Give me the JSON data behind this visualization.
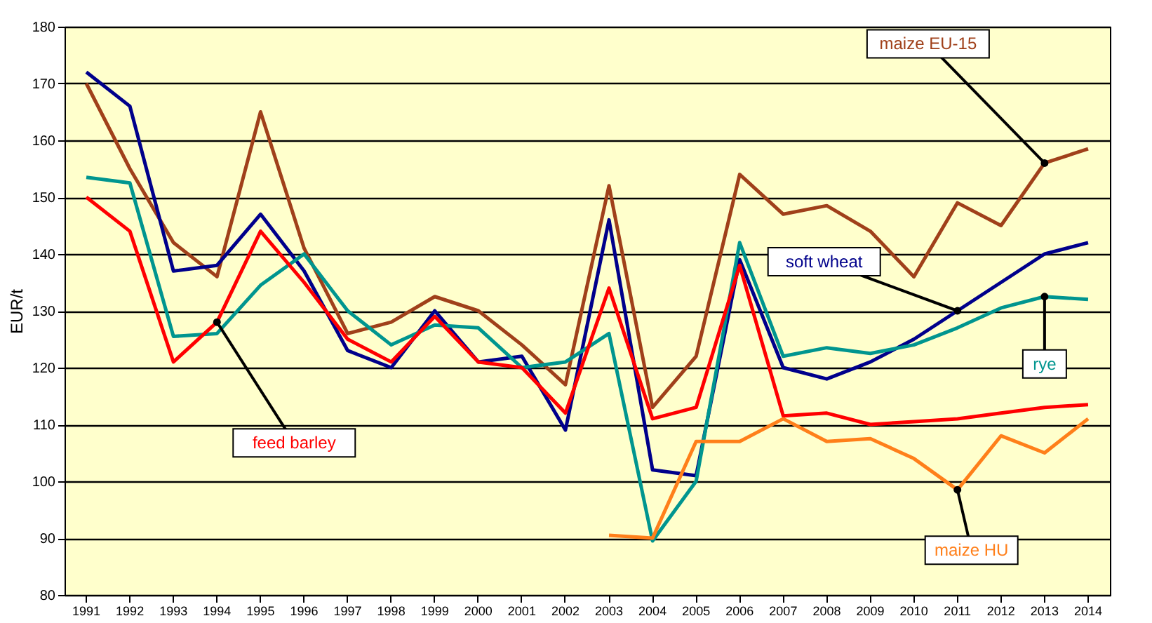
{
  "chart_data": {
    "type": "line",
    "ylabel": "EUR/t",
    "categories": [
      "1991",
      "1992",
      "1993",
      "1994",
      "1995",
      "1996",
      "1997",
      "1998",
      "1999",
      "2000",
      "2001",
      "2002",
      "2003",
      "2004",
      "2005",
      "2006",
      "2007",
      "2008",
      "2009",
      "2010",
      "2011",
      "2012",
      "2013",
      "2014"
    ],
    "series": [
      {
        "name": "maize EU-15",
        "color": "#a0401a",
        "values": [
          170,
          155,
          142,
          136,
          165,
          141,
          126,
          128,
          132.5,
          130,
          124,
          117,
          152,
          113,
          122,
          154,
          147,
          148.5,
          144,
          136,
          149,
          145,
          156,
          158.5
        ]
      },
      {
        "name": "soft wheat",
        "color": "#00008b",
        "values": [
          172,
          166,
          137,
          138,
          147,
          137,
          123,
          120,
          130,
          121,
          122,
          109,
          146,
          102,
          101,
          139,
          120,
          118,
          121,
          125,
          130,
          135,
          140,
          142
        ]
      },
      {
        "name": "rye",
        "color": "#00958f",
        "values": [
          153.5,
          152.5,
          125.5,
          126,
          134.5,
          140,
          130,
          124,
          127.5,
          127,
          120,
          121,
          126,
          89.5,
          100,
          142,
          122,
          123.5,
          122.5,
          124,
          127,
          130.5,
          132.5,
          132
        ]
      },
      {
        "name": "feed barley",
        "color": "#ff0000",
        "values": [
          150,
          144,
          121,
          128,
          144,
          135,
          125,
          121,
          129,
          121,
          120,
          112,
          134,
          111,
          113,
          138,
          111.5,
          112,
          110,
          110.5,
          111,
          112,
          113,
          113.5
        ]
      },
      {
        "name": "maize HU",
        "color": "#ff7f1a",
        "values": [
          null,
          null,
          null,
          null,
          null,
          null,
          null,
          null,
          null,
          null,
          null,
          null,
          90.5,
          90,
          107,
          107,
          111,
          107,
          107.5,
          104,
          98.5,
          108,
          105,
          111
        ]
      }
    ],
    "ylim": [
      80,
      180
    ],
    "yticks": [
      80,
      90,
      100,
      110,
      120,
      130,
      140,
      150,
      160,
      170,
      180
    ],
    "grid": "y",
    "legend": false,
    "marker": "none",
    "line_style": "solid"
  }
}
